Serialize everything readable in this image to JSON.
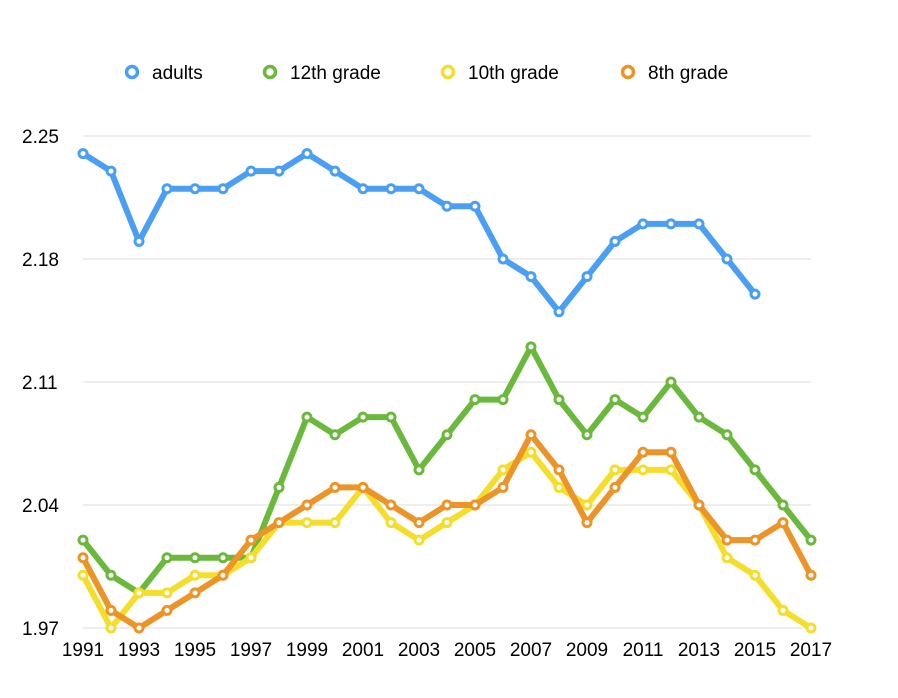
{
  "chart_data": {
    "type": "line",
    "title": "",
    "xlabel": "",
    "ylabel": "",
    "ylim": [
      1.97,
      2.25
    ],
    "yticks": [
      "1.97",
      "2.04",
      "2.11",
      "2.18",
      "2.25"
    ],
    "xticks": [
      "1991",
      "1993",
      "1995",
      "1997",
      "1999",
      "2001",
      "2003",
      "2005",
      "2007",
      "2009",
      "2011",
      "2013",
      "2015",
      "2017"
    ],
    "grid": true,
    "legend_position": "top",
    "x": [
      1991,
      1992,
      1993,
      1994,
      1995,
      1996,
      1997,
      1998,
      1999,
      2000,
      2001,
      2002,
      2003,
      2004,
      2005,
      2006,
      2007,
      2008,
      2009,
      2010,
      2011,
      2012,
      2013,
      2014,
      2015,
      2016,
      2017
    ],
    "series": [
      {
        "name": "adults",
        "color": "#4a9ff5",
        "values": [
          2.24,
          2.23,
          2.19,
          2.22,
          2.22,
          2.22,
          2.23,
          2.23,
          2.24,
          2.23,
          2.22,
          2.22,
          2.22,
          2.21,
          2.21,
          2.18,
          2.17,
          2.15,
          2.17,
          2.19,
          2.2,
          2.2,
          2.2,
          2.18,
          2.16,
          null,
          null
        ]
      },
      {
        "name": "12th grade",
        "color": "#6ab93d",
        "values": [
          2.02,
          2.0,
          1.99,
          2.01,
          2.01,
          2.01,
          2.01,
          2.05,
          2.09,
          2.08,
          2.09,
          2.09,
          2.06,
          2.08,
          2.1,
          2.1,
          2.13,
          2.1,
          2.08,
          2.1,
          2.09,
          2.11,
          2.09,
          2.08,
          2.06,
          2.04,
          2.02
        ]
      },
      {
        "name": "10th grade",
        "color": "#f5dd2c",
        "values": [
          2.0,
          1.97,
          1.99,
          1.99,
          2.0,
          2.0,
          2.01,
          2.03,
          2.03,
          2.03,
          2.05,
          2.03,
          2.02,
          2.03,
          2.04,
          2.06,
          2.07,
          2.05,
          2.04,
          2.06,
          2.06,
          2.06,
          2.04,
          2.01,
          2.0,
          1.98,
          1.97
        ]
      },
      {
        "name": "8th grade",
        "color": "#ec9427",
        "values": [
          2.01,
          1.98,
          1.97,
          1.98,
          1.99,
          2.0,
          2.02,
          2.03,
          2.04,
          2.05,
          2.05,
          2.04,
          2.03,
          2.04,
          2.04,
          2.05,
          2.08,
          2.06,
          2.03,
          2.05,
          2.07,
          2.07,
          2.04,
          2.02,
          2.02,
          2.03,
          2.0
        ]
      }
    ]
  }
}
